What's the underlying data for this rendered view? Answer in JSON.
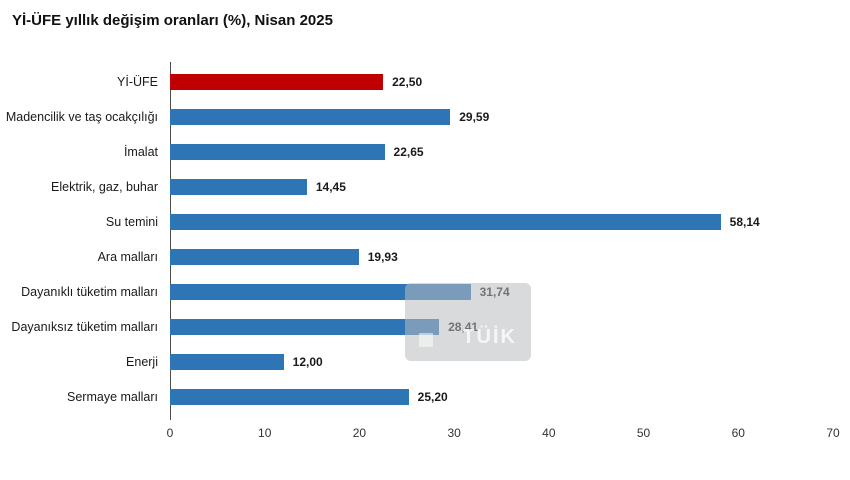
{
  "title": "Yİ-ÜFE yıllık değişim oranları (%), Nisan 2025",
  "colors": {
    "bar_default": "#2E75B6",
    "bar_highlight": "#C00000",
    "axis": "#4d4d4d"
  },
  "watermark": {
    "text": "TÜİK"
  },
  "chart_data": {
    "type": "bar",
    "orientation": "horizontal",
    "title": "Yİ-ÜFE yıllık değişim oranları (%), Nisan 2025",
    "categories": [
      "Yİ-ÜFE",
      "Madencilik ve taş ocakçılığı",
      "İmalat",
      "Elektrik, gaz, buhar",
      "Su temini",
      "Ara malları",
      "Dayanıklı tüketim malları",
      "Dayanıksız tüketim malları",
      "Enerji",
      "Sermaye malları"
    ],
    "values": [
      22.5,
      29.59,
      22.65,
      14.45,
      58.14,
      19.93,
      31.74,
      28.41,
      12.0,
      25.2
    ],
    "value_labels": [
      "22,50",
      "29,59",
      "22,65",
      "14,45",
      "58,14",
      "19,93",
      "31,74",
      "28,41",
      "12,00",
      "25,20"
    ],
    "highlight_index": 0,
    "xlim": [
      0,
      70
    ],
    "x_ticks": [
      0,
      10,
      20,
      30,
      40,
      50,
      60,
      70
    ],
    "xlabel": "",
    "ylabel": "",
    "grid": false,
    "legend": false
  }
}
